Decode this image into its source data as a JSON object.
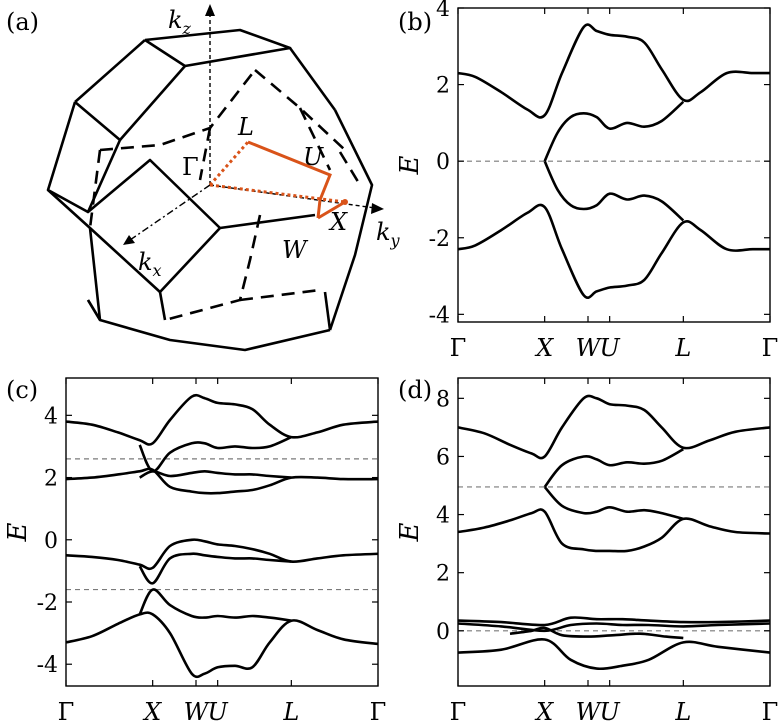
{
  "panel_labels": [
    "(a)",
    "(b)",
    "(c)",
    "(d)"
  ],
  "brillouin_zone": {
    "axis_labels": {
      "kz": "k",
      "kz_sub": "z",
      "ky": "k",
      "ky_sub": "y",
      "kx": "k",
      "kx_sub": "x"
    },
    "points": [
      "Γ",
      "L",
      "U",
      "W",
      "X"
    ],
    "path_color": "#d95319",
    "edge_color": "#000000"
  },
  "chart_data": [
    {
      "id": "b",
      "type": "line",
      "ylabel": "E",
      "ylim": [
        -4.2,
        4.0
      ],
      "yticks": [
        -4,
        -2,
        0,
        2,
        4
      ],
      "ytick_labels": [
        "-4",
        "-2",
        "0",
        "2",
        "4"
      ],
      "x_ticks": [
        0.0,
        1.0,
        1.5,
        1.75,
        2.6,
        3.6
      ],
      "x_tick_labels": [
        "Γ",
        "X",
        "W",
        "U",
        "L",
        "Γ"
      ],
      "xlim": [
        0,
        3.6
      ],
      "dashed_levels": [
        0
      ],
      "series": [
        {
          "x": [
            0,
            0.2,
            0.5,
            0.8,
            1.0,
            1.2,
            1.45,
            1.6,
            1.75,
            1.95,
            2.15,
            2.35,
            2.6,
            2.8,
            3.1,
            3.4,
            3.6
          ],
          "y": [
            2.3,
            2.2,
            1.8,
            1.35,
            1.2,
            2.3,
            3.5,
            3.4,
            3.3,
            3.25,
            3.1,
            2.4,
            1.6,
            1.8,
            2.3,
            2.3,
            2.3
          ]
        },
        {
          "x": [
            0,
            0.2,
            0.5,
            0.8,
            1.0,
            1.2,
            1.45,
            1.6,
            1.75,
            1.95,
            2.15,
            2.35,
            2.6,
            2.8,
            3.1,
            3.4,
            3.6
          ],
          "y": [
            -2.3,
            -2.2,
            -1.8,
            -1.35,
            -1.2,
            -2.3,
            -3.5,
            -3.4,
            -3.3,
            -3.25,
            -3.1,
            -2.4,
            -1.6,
            -1.8,
            -2.3,
            -2.3,
            -2.3
          ]
        },
        {
          "x": [
            1.0,
            1.15,
            1.3,
            1.45,
            1.6,
            1.75,
            1.95,
            2.15,
            2.35,
            2.6
          ],
          "y": [
            0.0,
            0.75,
            1.15,
            1.25,
            1.15,
            0.85,
            1.0,
            0.9,
            1.05,
            1.55
          ]
        },
        {
          "x": [
            1.0,
            1.15,
            1.3,
            1.45,
            1.6,
            1.75,
            1.95,
            2.15,
            2.35,
            2.6
          ],
          "y": [
            0.0,
            -0.75,
            -1.15,
            -1.25,
            -1.15,
            -0.85,
            -1.0,
            -0.9,
            -1.05,
            -1.55
          ]
        }
      ]
    },
    {
      "id": "c",
      "type": "line",
      "ylabel": "E",
      "ylim": [
        -4.7,
        5.2
      ],
      "yticks": [
        -4,
        -2,
        0,
        2,
        4
      ],
      "ytick_labels": [
        "-4",
        "-2",
        "0",
        "2",
        "4"
      ],
      "x_ticks": [
        0.0,
        1.0,
        1.5,
        1.75,
        2.6,
        3.6
      ],
      "x_tick_labels": [
        "Γ",
        "X",
        "W",
        "U",
        "L",
        "Γ"
      ],
      "xlim": [
        0,
        3.6
      ],
      "dashed_levels": [
        2.6,
        -1.6
      ],
      "series": [
        {
          "x": [
            0,
            0.3,
            0.6,
            0.85,
            1.0,
            1.2,
            1.45,
            1.6,
            1.75,
            1.95,
            2.15,
            2.35,
            2.6,
            2.9,
            3.2,
            3.6
          ],
          "y": [
            3.8,
            3.7,
            3.45,
            3.2,
            3.1,
            3.85,
            4.6,
            4.55,
            4.4,
            4.35,
            4.2,
            3.7,
            3.3,
            3.45,
            3.7,
            3.8
          ]
        },
        {
          "x": [
            0,
            0.3,
            0.6,
            0.85,
            1.0,
            1.2,
            1.45,
            1.6,
            1.75,
            1.95,
            2.15,
            2.35,
            2.6,
            2.9,
            3.2,
            3.6
          ],
          "y": [
            1.95,
            2.0,
            2.1,
            2.2,
            2.25,
            1.7,
            1.55,
            1.5,
            1.5,
            1.55,
            1.6,
            1.75,
            2.0,
            2.0,
            1.95,
            1.95
          ]
        },
        {
          "x": [
            0.85,
            1.0,
            1.2,
            1.45,
            1.6,
            1.75,
            1.95,
            2.15,
            2.35,
            2.6
          ],
          "y": [
            3.05,
            2.2,
            2.8,
            3.1,
            3.1,
            2.95,
            3.0,
            2.95,
            3.0,
            3.3
          ]
        },
        {
          "x": [
            0.85,
            1.0,
            1.2,
            1.45,
            1.6,
            1.75,
            1.95,
            2.15,
            2.35,
            2.6
          ],
          "y": [
            2.0,
            2.2,
            2.05,
            2.15,
            2.2,
            2.15,
            2.1,
            2.1,
            2.05,
            2.0
          ]
        },
        {
          "x": [
            0,
            0.3,
            0.6,
            0.85,
            1.0,
            1.2,
            1.45,
            1.6,
            1.75,
            1.95,
            2.15,
            2.35,
            2.6,
            2.9,
            3.2,
            3.6
          ],
          "y": [
            -0.5,
            -0.55,
            -0.65,
            -0.8,
            -0.9,
            -0.2,
            0.0,
            -0.05,
            -0.15,
            -0.2,
            -0.3,
            -0.45,
            -0.7,
            -0.6,
            -0.5,
            -0.45
          ]
        },
        {
          "x": [
            0,
            0.3,
            0.6,
            0.85,
            1.0,
            1.2,
            1.45,
            1.6,
            1.75,
            1.95,
            2.15,
            2.35,
            2.6,
            2.9,
            3.2,
            3.6
          ],
          "y": [
            -3.3,
            -3.1,
            -2.7,
            -2.4,
            -2.4,
            -3.0,
            -4.3,
            -4.3,
            -4.1,
            -4.05,
            -4.1,
            -3.3,
            -2.6,
            -2.9,
            -3.2,
            -3.35
          ]
        },
        {
          "x": [
            0.85,
            1.0,
            1.2,
            1.45,
            1.6,
            1.75,
            1.95,
            2.15,
            2.35,
            2.6
          ],
          "y": [
            -0.85,
            -1.4,
            -0.6,
            -0.45,
            -0.5,
            -0.55,
            -0.6,
            -0.6,
            -0.65,
            -0.7
          ]
        },
        {
          "x": [
            0.85,
            1.0,
            1.2,
            1.45,
            1.6,
            1.75,
            1.95,
            2.15,
            2.35,
            2.6
          ],
          "y": [
            -2.4,
            -1.6,
            -2.1,
            -2.45,
            -2.5,
            -2.45,
            -2.5,
            -2.45,
            -2.5,
            -2.6
          ]
        }
      ]
    },
    {
      "id": "d",
      "type": "line",
      "ylabel": "E",
      "ylim": [
        -1.9,
        8.7
      ],
      "yticks": [
        0,
        2,
        4,
        6,
        8
      ],
      "ytick_labels": [
        "0",
        "2",
        "4",
        "6",
        "8"
      ],
      "x_ticks": [
        0.0,
        1.0,
        1.5,
        1.75,
        2.6,
        3.6
      ],
      "x_tick_labels": [
        "Γ",
        "X",
        "W",
        "U",
        "L",
        "Γ"
      ],
      "xlim": [
        0,
        3.6
      ],
      "dashed_levels": [
        4.95,
        0
      ],
      "series": [
        {
          "x": [
            0,
            0.3,
            0.6,
            0.85,
            1.0,
            1.2,
            1.45,
            1.6,
            1.75,
            1.95,
            2.15,
            2.35,
            2.6,
            2.9,
            3.2,
            3.6
          ],
          "y": [
            7.0,
            6.8,
            6.4,
            6.1,
            6.0,
            7.0,
            8.0,
            8.0,
            7.8,
            7.75,
            7.6,
            7.0,
            6.3,
            6.55,
            6.85,
            7.0
          ]
        },
        {
          "x": [
            0,
            0.3,
            0.6,
            0.85,
            1.0,
            1.2,
            1.45,
            1.6,
            1.75,
            1.95,
            2.15,
            2.35,
            2.6,
            2.9,
            3.2,
            3.6
          ],
          "y": [
            3.4,
            3.55,
            3.8,
            4.05,
            4.1,
            3.0,
            2.8,
            2.75,
            2.75,
            2.75,
            2.9,
            3.2,
            3.85,
            3.6,
            3.4,
            3.35
          ]
        },
        {
          "x": [
            1.0,
            1.2,
            1.45,
            1.6,
            1.75,
            1.95,
            2.15,
            2.35,
            2.6
          ],
          "y": [
            4.95,
            5.7,
            6.0,
            5.9,
            5.7,
            5.8,
            5.75,
            5.85,
            6.25
          ]
        },
        {
          "x": [
            1.0,
            1.2,
            1.45,
            1.6,
            1.75,
            1.95,
            2.15,
            2.35,
            2.6
          ],
          "y": [
            4.95,
            4.3,
            4.05,
            4.1,
            4.25,
            4.1,
            4.15,
            4.05,
            3.85
          ]
        },
        {
          "x": [
            0,
            0.5,
            1.0,
            1.3,
            1.6,
            1.9,
            2.2,
            2.6,
            3.0,
            3.6
          ],
          "y": [
            0.35,
            0.3,
            0.2,
            0.45,
            0.4,
            0.4,
            0.35,
            0.3,
            0.3,
            0.35
          ]
        },
        {
          "x": [
            0,
            0.5,
            1.0,
            1.3,
            1.6,
            1.9,
            2.2,
            2.6,
            3.0,
            3.6
          ],
          "y": [
            0.25,
            0.15,
            0.0,
            0.2,
            0.25,
            0.2,
            0.2,
            0.15,
            0.2,
            0.25
          ]
        },
        {
          "x": [
            0,
            0.5,
            1.0,
            1.3,
            1.6,
            1.9,
            2.2,
            2.6,
            3.0,
            3.6
          ],
          "y": [
            -0.75,
            -0.65,
            -0.3,
            -1.0,
            -1.3,
            -1.2,
            -1.0,
            -0.4,
            -0.55,
            -0.75
          ]
        },
        {
          "x": [
            0.6,
            0.85,
            1.0,
            1.2,
            1.5,
            1.8,
            2.1,
            2.4,
            2.6
          ],
          "y": [
            -0.1,
            0.0,
            0.1,
            -0.15,
            -0.2,
            -0.15,
            -0.1,
            -0.2,
            -0.25
          ]
        }
      ]
    }
  ]
}
